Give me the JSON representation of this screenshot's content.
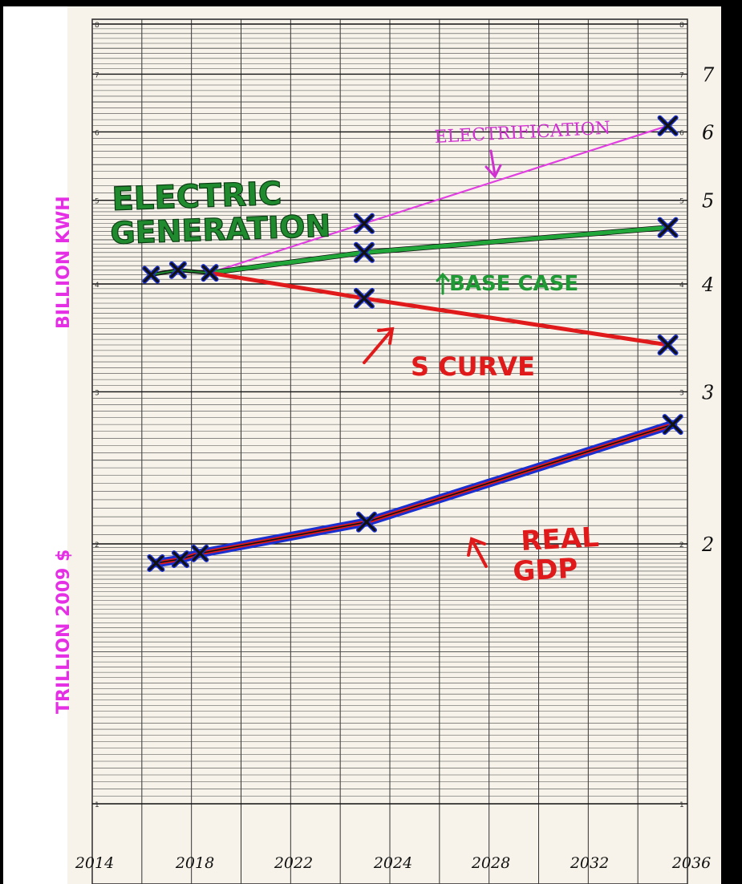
{
  "chart_data": {
    "type": "line",
    "scale": "log",
    "grid": true,
    "x_ticks": [
      "2014",
      "2018",
      "2022",
      "2024",
      "2028",
      "2032",
      "2036"
    ],
    "y_ticks_right": [
      "7",
      "6",
      "5",
      "4",
      "3",
      "2"
    ],
    "printed_cycle_labels": [
      "8",
      "7",
      "6",
      "5",
      "4",
      "3",
      "2",
      "1"
    ],
    "ylabel_top": "BILLION KWH",
    "ylabel_bottom": "TRILLION 2009 $",
    "ylim": [
      1,
      8
    ],
    "series": [
      {
        "name": "ELECTRIFICATION",
        "color": "#e040e0",
        "points": [
          [
            2014.4,
            4.1
          ],
          [
            2015.5,
            4.15
          ],
          [
            2016.8,
            4.12
          ],
          [
            2023.1,
            4.7
          ],
          [
            2035.5,
            6.1
          ]
        ]
      },
      {
        "name": "BASE CASE",
        "color": "#22a83a",
        "points": [
          [
            2014.4,
            4.1
          ],
          [
            2015.5,
            4.15
          ],
          [
            2016.8,
            4.12
          ],
          [
            2023.1,
            4.35
          ],
          [
            2035.5,
            4.65
          ]
        ]
      },
      {
        "name": "S CURVE",
        "color": "#e01a1a",
        "points": [
          [
            2014.4,
            4.1
          ],
          [
            2015.5,
            4.15
          ],
          [
            2016.8,
            4.12
          ],
          [
            2023.1,
            3.85
          ],
          [
            2035.5,
            3.4
          ]
        ]
      },
      {
        "name": "REAL GDP",
        "color": "#1a2fd0",
        "points": [
          [
            2014.6,
            1.9
          ],
          [
            2015.6,
            1.92
          ],
          [
            2016.4,
            1.95
          ],
          [
            2023.2,
            2.12
          ],
          [
            2035.7,
            2.75
          ]
        ]
      }
    ],
    "annotations": [
      "ELECTRIC",
      "GENERATION",
      "ELECTRIFICATION",
      "BASE CASE",
      "S CURVE",
      "REAL",
      "GDP"
    ]
  }
}
